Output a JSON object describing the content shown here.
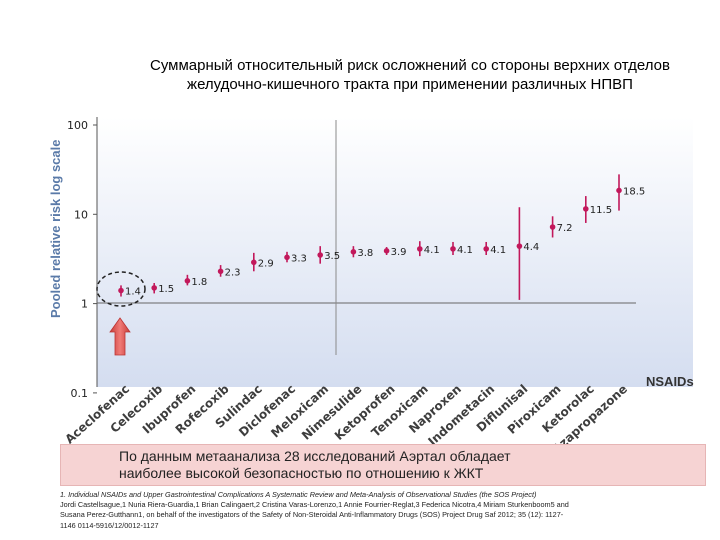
{
  "title": "Суммарный относительный риск осложнений со стороны верхних отделов желудочно-кишечного тракта при применении различных НПВП",
  "chart_data": {
    "type": "scatter",
    "y_scale": "log",
    "ylim": [
      0.1,
      100
    ],
    "y_ticks": [
      "100",
      "10",
      "1",
      "0.1"
    ],
    "ylabel": "Pooled relative risk log scale",
    "xlabel": "NSAIDs",
    "reference_line": 1,
    "categories": [
      "Aceclofenac",
      "Celecoxib",
      "Ibuprofen",
      "Rofecoxib",
      "Sulindac",
      "Diclofenac",
      "Meloxicam",
      "Nimesulide",
      "Ketoprofen",
      "Tenoxicam",
      "Naproxen",
      "Indometacin",
      "Diflunisal",
      "Piroxicam",
      "Ketorolac",
      "Azapropazone"
    ],
    "values": [
      1.4,
      1.5,
      1.8,
      2.3,
      2.9,
      3.3,
      3.5,
      3.8,
      3.9,
      4.1,
      4.1,
      4.1,
      4.4,
      7.2,
      11.5,
      18.5
    ],
    "value_labels": [
      "1.4",
      "1.5",
      "1.8",
      "2.3",
      "2.9",
      "3.3",
      "3.5",
      "3.8",
      "3.9",
      "4.1",
      "4.1",
      "4.1",
      "4.4",
      "7.2",
      "11.5",
      "18.5"
    ],
    "ci_low": [
      1.2,
      1.3,
      1.6,
      2.0,
      2.3,
      2.9,
      2.8,
      3.3,
      3.5,
      3.4,
      3.5,
      3.5,
      1.1,
      5.5,
      8.0,
      11.0
    ],
    "ci_high": [
      1.6,
      1.7,
      2.1,
      2.7,
      3.7,
      3.8,
      4.4,
      4.4,
      4.3,
      5.0,
      4.9,
      4.9,
      12.0,
      9.5,
      16.0,
      28.0
    ],
    "highlighted_category": "Aceclofenac",
    "colors": {
      "marker": "#c2185b",
      "background": "#dde4f3",
      "arrow": "#e0504c"
    }
  },
  "conclusion": {
    "line1": "По данным метаанализа 28 исследований Аэртал обладает",
    "line2": "наиболее высокой безопасностью по отношению к ЖКТ"
  },
  "references": {
    "title": "1. Individual NSAIDs and Upper Gastrointestinal Complications A Systematic Review and Meta-Analysis of Observational Studies (the SOS Project)",
    "line2": "Jordi Castellsague,1 Nuria Riera-Guardia,1 Brian Calingaert,2 Cristina Varas-Lorenzo,1 Annie Fourrier-Reglat,3 Federica Nicotra,4 Miriam Sturkenboom5 and",
    "line3": "Susana Perez-Gutthann1, on behalf of the investigators of the Safety of Non-Steroidal Anti-Inflammatory Drugs (SOS) Project Drug Saf 2012; 35 (12): 1127-",
    "line4": "1146 0114-5916/12/0012-1127"
  }
}
